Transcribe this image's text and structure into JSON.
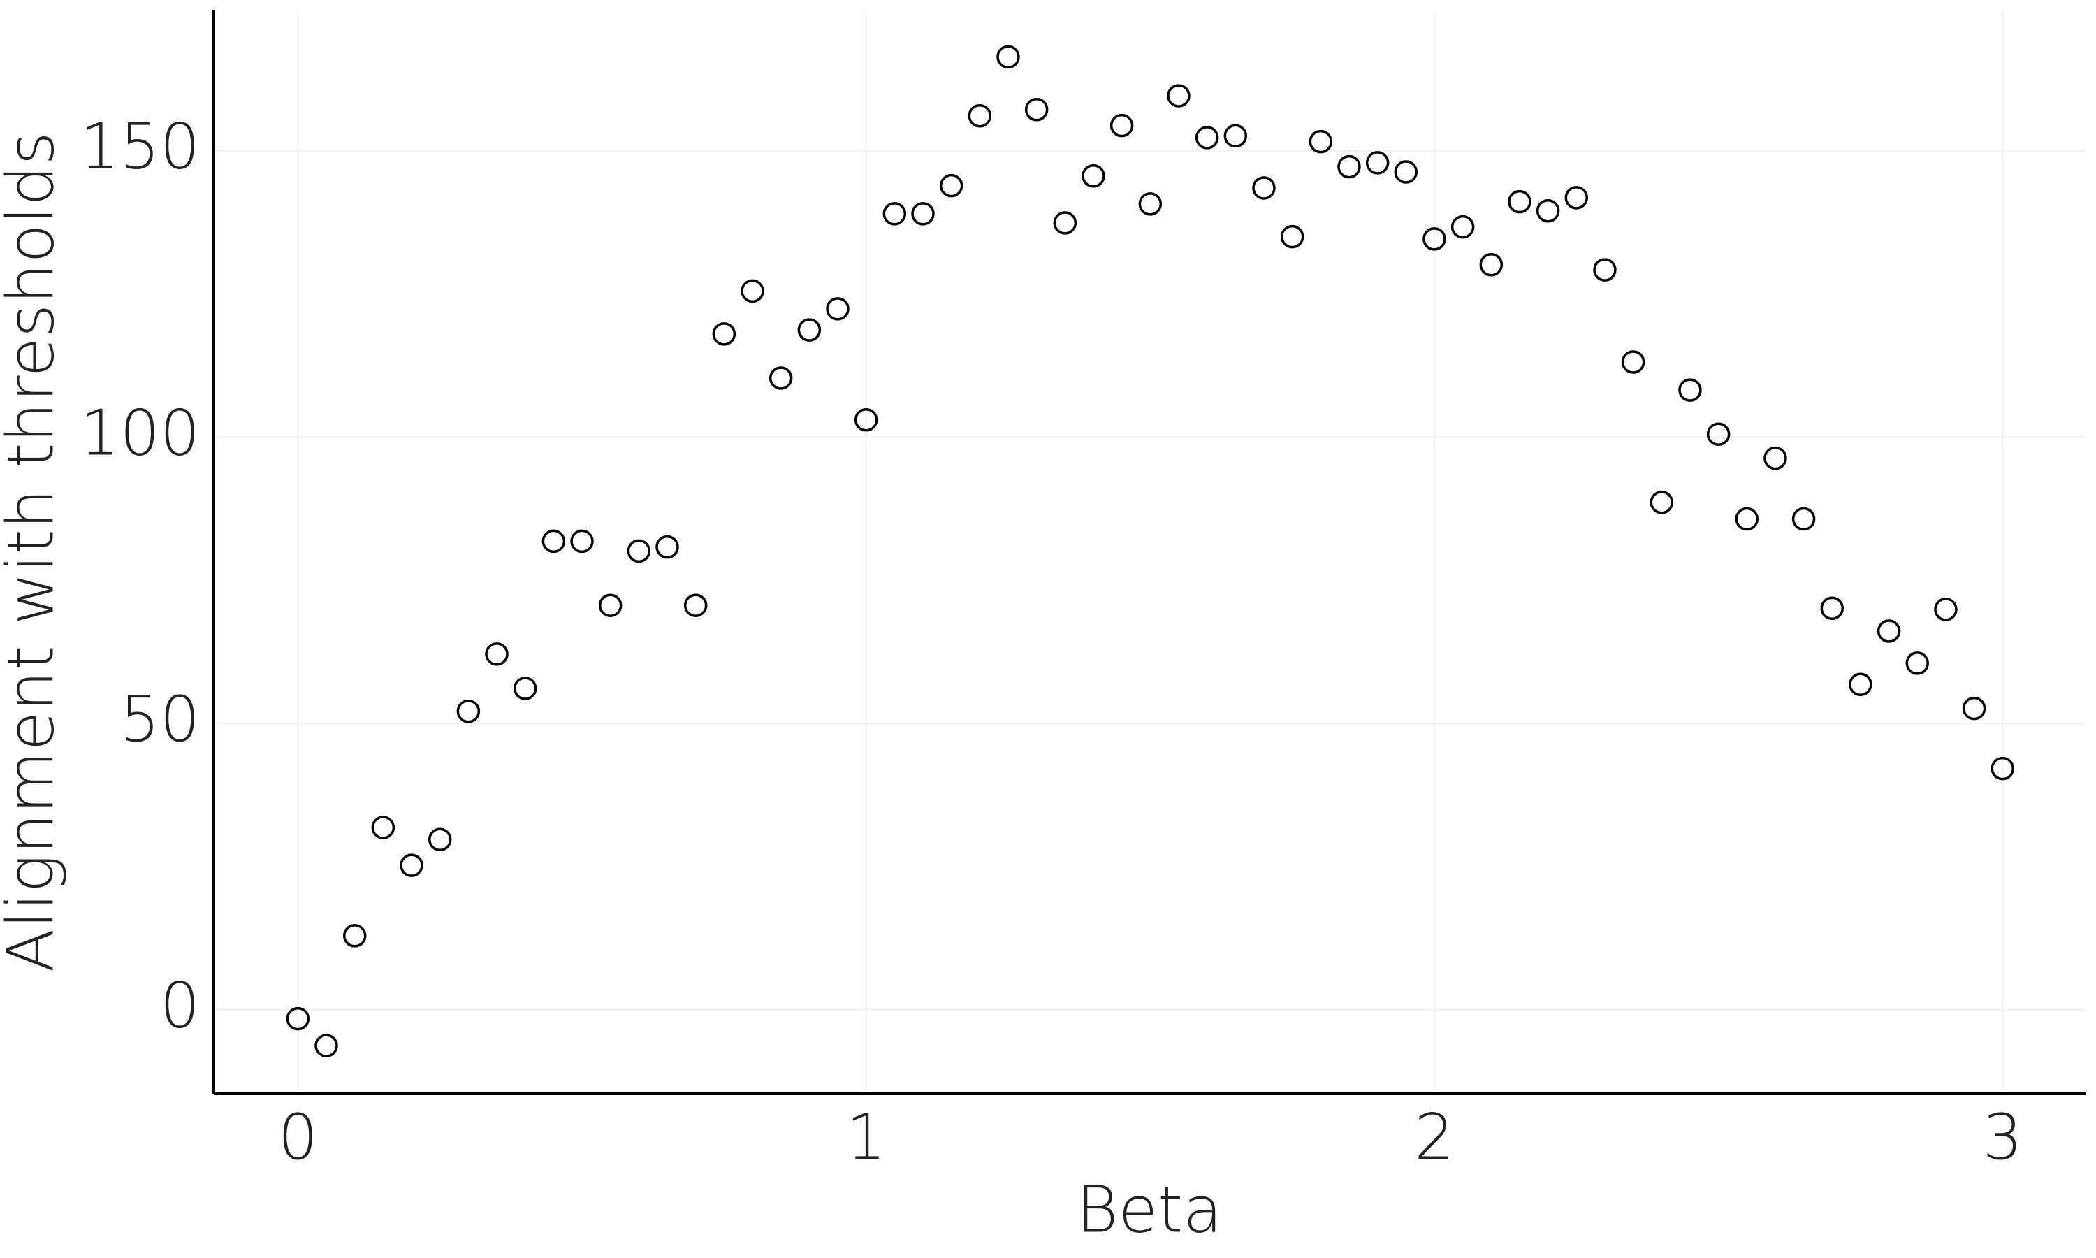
{
  "chart_data": {
    "type": "scatter",
    "x_label": "Beta",
    "y_label": "Alignment with thresholds",
    "x": [
      0,
      0.05,
      0.1,
      0.15,
      0.2,
      0.25,
      0.3,
      0.35,
      0.4,
      0.45,
      0.5,
      0.55,
      0.6,
      0.65,
      0.7,
      0.75,
      0.8,
      0.85,
      0.9,
      0.95,
      1.0,
      1.05,
      1.1,
      1.15,
      1.2,
      1.25,
      1.3,
      1.35,
      1.4,
      1.45,
      1.5,
      1.55,
      1.6,
      1.65,
      1.7,
      1.75,
      1.8,
      1.85,
      1.9,
      1.95,
      2.0,
      2.05,
      2.1,
      2.15,
      2.2,
      2.25,
      2.3,
      2.35,
      2.4,
      2.45,
      2.5,
      2.55,
      2.6,
      2.65,
      2.7,
      2.75,
      2.8,
      2.85,
      2.9,
      2.95,
      3.0
    ],
    "values": [
      -1.6,
      -6.3,
      12.9,
      31.8,
      25.2,
      29.7,
      52.1,
      62.1,
      56.1,
      81.8,
      81.8,
      70.6,
      80.1,
      80.8,
      70.6,
      118.0,
      125.5,
      110.3,
      118.7,
      122.4,
      103.0,
      139.0,
      139.0,
      143.9,
      156.1,
      166.4,
      157.2,
      137.4,
      145.6,
      154.4,
      140.7,
      159.6,
      152.3,
      152.6,
      143.5,
      135.0,
      151.6,
      147.2,
      147.9,
      146.3,
      134.6,
      136.7,
      130.1,
      141.1,
      139.5,
      141.8,
      129.2,
      113.1,
      88.6,
      108.2,
      100.5,
      85.7,
      96.3,
      85.7,
      70.1,
      56.8,
      66.1,
      60.5,
      69.9,
      52.6,
      42.1
    ],
    "marker_color": "#000000",
    "xlim": [
      -0.148,
      3.146
    ],
    "ylim": [
      -14.7,
      174.5
    ],
    "xticks": [
      0,
      1,
      2,
      3
    ],
    "yticks": [
      0,
      50,
      100,
      150
    ],
    "grid": true
  }
}
